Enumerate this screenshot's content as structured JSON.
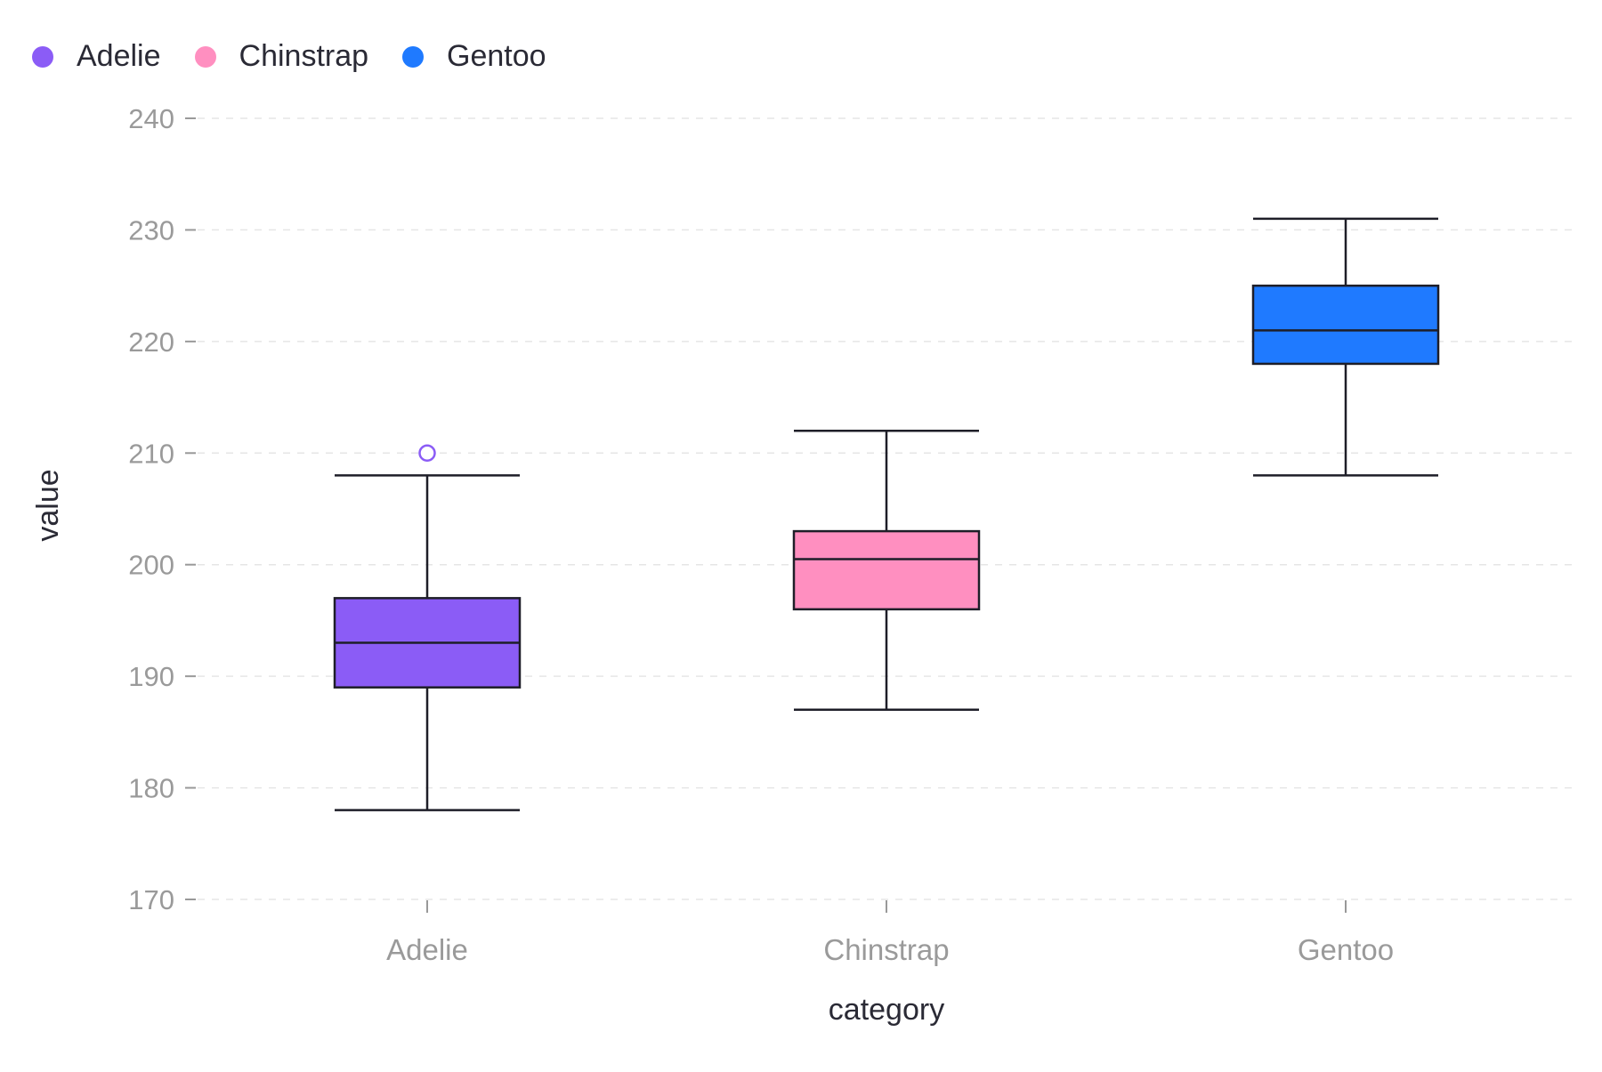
{
  "chart_data": {
    "type": "boxplot",
    "title": "",
    "xlabel": "category",
    "ylabel": "value",
    "categories": [
      "Adelie",
      "Chinstrap",
      "Gentoo"
    ],
    "ylim": [
      170,
      240
    ],
    "yticks": [
      170,
      180,
      190,
      200,
      210,
      220,
      230,
      240
    ],
    "grid": true,
    "legend_position": "top-left",
    "series": [
      {
        "name": "Adelie",
        "color": "#8b5cf6",
        "whisker_low": 178,
        "q1": 189,
        "median": 193,
        "q3": 197,
        "whisker_high": 208,
        "outliers": [
          210
        ]
      },
      {
        "name": "Chinstrap",
        "color": "#ff8fc0",
        "whisker_low": 187,
        "q1": 196,
        "median": 200.5,
        "q3": 203,
        "whisker_high": 212,
        "outliers": []
      },
      {
        "name": "Gentoo",
        "color": "#1f7aff",
        "whisker_low": 208,
        "q1": 218,
        "median": 221,
        "q3": 225,
        "whisker_high": 231,
        "outliers": []
      }
    ]
  }
}
